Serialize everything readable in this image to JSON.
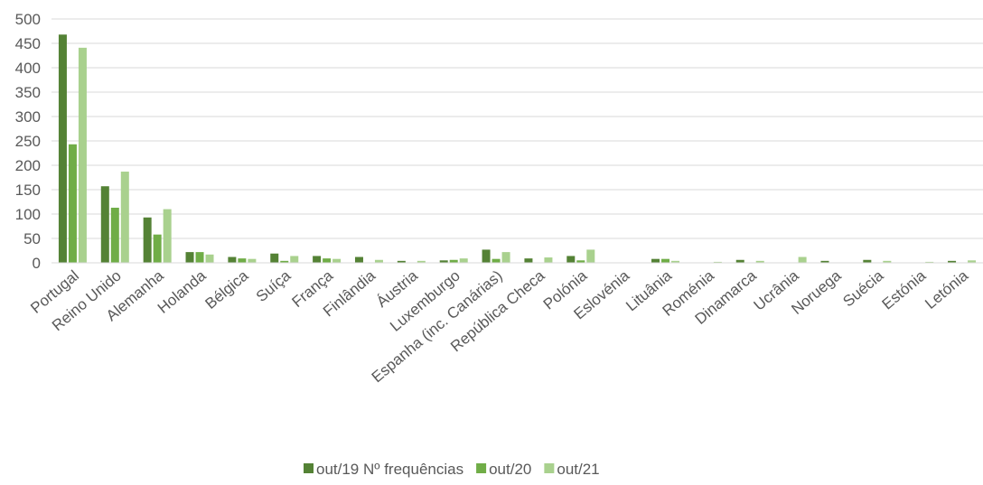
{
  "chart_data": {
    "type": "bar",
    "categories": [
      "Portugal",
      "Reino Unido",
      "Alemanha",
      "Holanda",
      "Bélgica",
      "Suíça",
      "França",
      "Finlândia",
      "Áustria",
      "Luxemburgo",
      "Espanha (inc. Canárias)",
      "República Checa",
      "Polónia",
      "Eslovénia",
      "Lituânia",
      "Roménia",
      "Dinamarca",
      "Ucrânia",
      "Noruega",
      "Suécia",
      "Estónia",
      "Letónia"
    ],
    "series": [
      {
        "name": "out/19 Nº frequências",
        "color": "#548235",
        "values": [
          468,
          157,
          93,
          22,
          12,
          19,
          14,
          12,
          4,
          5,
          27,
          9,
          14,
          0,
          8,
          0,
          6,
          0,
          4,
          6,
          0,
          4
        ]
      },
      {
        "name": "out/20",
        "color": "#70ad47",
        "values": [
          243,
          113,
          58,
          22,
          9,
          4,
          9,
          0,
          0,
          6,
          8,
          0,
          5,
          0,
          8,
          0,
          0,
          0,
          0,
          0,
          0,
          0
        ]
      },
      {
        "name": "out/21",
        "color": "#a9d18e",
        "values": [
          441,
          187,
          110,
          17,
          8,
          14,
          8,
          6,
          4,
          9,
          22,
          11,
          27,
          0,
          4,
          2,
          4,
          12,
          0,
          4,
          2,
          5
        ]
      }
    ],
    "xlabel": "",
    "ylabel": "",
    "ylim": [
      0,
      500
    ],
    "yticks": [
      "0",
      "50",
      "100",
      "150",
      "200",
      "250",
      "300",
      "350",
      "400",
      "450",
      "500"
    ],
    "grid": true,
    "legend_position": "bottom"
  }
}
